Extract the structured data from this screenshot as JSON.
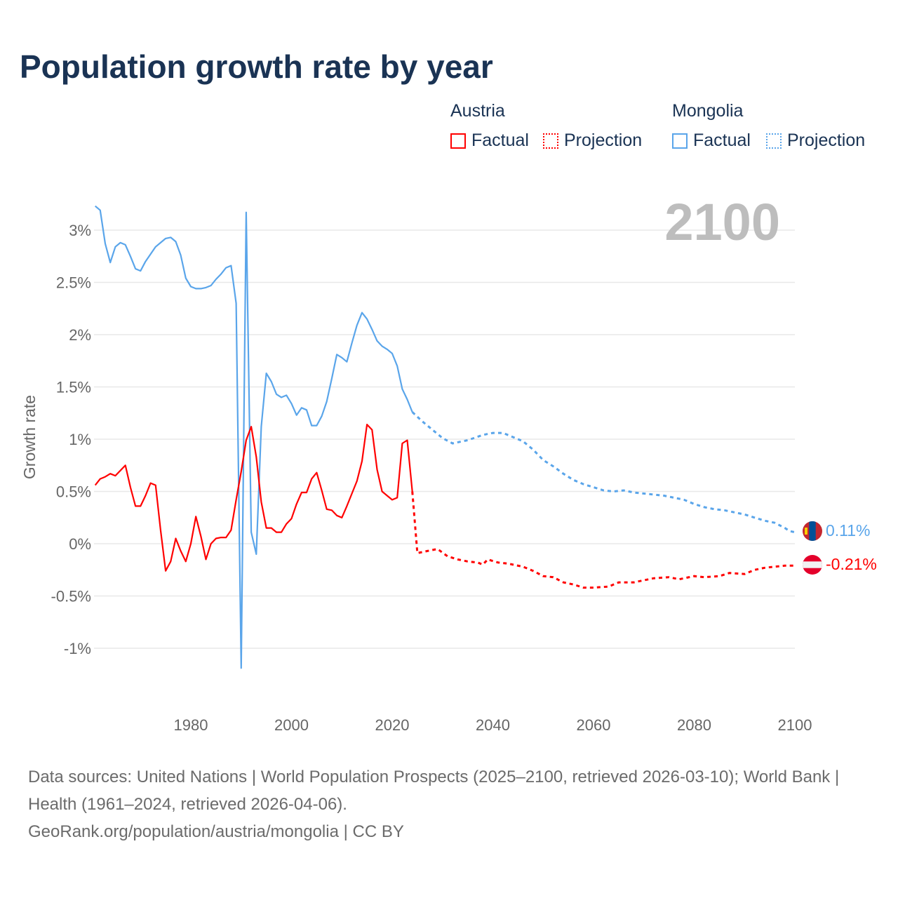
{
  "title": "Population growth rate by year",
  "legend": {
    "groups": [
      {
        "name": "Austria",
        "factual": "Factual",
        "projection": "Projection",
        "color": "#ff0000"
      },
      {
        "name": "Mongolia",
        "factual": "Factual",
        "projection": "Projection",
        "color": "#5aa5ea"
      }
    ]
  },
  "footer": {
    "sources": "Data sources: United Nations | World Population Prospects (2025–2100, retrieved 2026-03-10); World Bank | Health (1961–2024, retrieved 2026-04-06).",
    "credit": "GeoRank.org/population/austria/mongolia | CC BY"
  },
  "chart_data": {
    "type": "line",
    "title": "Population growth rate by year",
    "ylabel": "Growth rate",
    "xlabel": "",
    "year_label": "2100",
    "xlim": [
      1961,
      2100
    ],
    "ylim": [
      -1.5,
      3.3
    ],
    "x_ticks": [
      1980,
      2000,
      2020,
      2040,
      2060,
      2080,
      2100
    ],
    "y_ticks": [
      -1,
      -0.5,
      0,
      0.5,
      1,
      1.5,
      2,
      2.5,
      3
    ],
    "y_tick_labels": [
      "-1%",
      "-0.5%",
      "0%",
      "0.5%",
      "1%",
      "1.5%",
      "2%",
      "2.5%",
      "3%"
    ],
    "grid": true,
    "end_labels": {
      "Austria": "-0.21%",
      "Mongolia": "0.11%"
    },
    "series": [
      {
        "name": "Mongolia",
        "color": "#5aa5ea",
        "factual": [
          [
            1961,
            3.23
          ],
          [
            1962,
            3.19
          ],
          [
            1963,
            2.87
          ],
          [
            1964,
            2.69
          ],
          [
            1965,
            2.84
          ],
          [
            1966,
            2.88
          ],
          [
            1967,
            2.86
          ],
          [
            1968,
            2.75
          ],
          [
            1969,
            2.63
          ],
          [
            1970,
            2.61
          ],
          [
            1971,
            2.7
          ],
          [
            1972,
            2.77
          ],
          [
            1973,
            2.84
          ],
          [
            1974,
            2.88
          ],
          [
            1975,
            2.92
          ],
          [
            1976,
            2.93
          ],
          [
            1977,
            2.89
          ],
          [
            1978,
            2.76
          ],
          [
            1979,
            2.54
          ],
          [
            1980,
            2.46
          ],
          [
            1981,
            2.44
          ],
          [
            1982,
            2.44
          ],
          [
            1983,
            2.45
          ],
          [
            1984,
            2.47
          ],
          [
            1985,
            2.53
          ],
          [
            1986,
            2.58
          ],
          [
            1987,
            2.64
          ],
          [
            1988,
            2.66
          ],
          [
            1989,
            2.3
          ],
          [
            1990,
            -1.19
          ],
          [
            1991,
            3.17
          ],
          [
            1992,
            0.11
          ],
          [
            1993,
            -0.1
          ],
          [
            1994,
            1.12
          ],
          [
            1995,
            1.63
          ],
          [
            1996,
            1.55
          ],
          [
            1997,
            1.43
          ],
          [
            1998,
            1.4
          ],
          [
            1999,
            1.42
          ],
          [
            2000,
            1.34
          ],
          [
            2001,
            1.23
          ],
          [
            2002,
            1.3
          ],
          [
            2003,
            1.28
          ],
          [
            2004,
            1.13
          ],
          [
            2005,
            1.13
          ],
          [
            2006,
            1.22
          ],
          [
            2007,
            1.36
          ],
          [
            2008,
            1.58
          ],
          [
            2009,
            1.81
          ],
          [
            2010,
            1.78
          ],
          [
            2011,
            1.74
          ],
          [
            2012,
            1.92
          ],
          [
            2013,
            2.09
          ],
          [
            2014,
            2.21
          ],
          [
            2015,
            2.15
          ],
          [
            2016,
            2.05
          ],
          [
            2017,
            1.94
          ],
          [
            2018,
            1.89
          ],
          [
            2019,
            1.86
          ],
          [
            2020,
            1.82
          ],
          [
            2021,
            1.7
          ],
          [
            2022,
            1.48
          ],
          [
            2023,
            1.38
          ],
          [
            2024,
            1.26
          ]
        ],
        "projection": [
          [
            2024,
            1.26
          ],
          [
            2026,
            1.17
          ],
          [
            2028,
            1.09
          ],
          [
            2030,
            1.01
          ],
          [
            2032,
            0.96
          ],
          [
            2035,
            0.99
          ],
          [
            2038,
            1.04
          ],
          [
            2040,
            1.06
          ],
          [
            2042,
            1.06
          ],
          [
            2044,
            1.02
          ],
          [
            2046,
            0.98
          ],
          [
            2048,
            0.9
          ],
          [
            2050,
            0.8
          ],
          [
            2052,
            0.74
          ],
          [
            2054,
            0.67
          ],
          [
            2056,
            0.61
          ],
          [
            2058,
            0.57
          ],
          [
            2060,
            0.54
          ],
          [
            2062,
            0.51
          ],
          [
            2064,
            0.5
          ],
          [
            2066,
            0.51
          ],
          [
            2068,
            0.49
          ],
          [
            2070,
            0.48
          ],
          [
            2072,
            0.47
          ],
          [
            2074,
            0.46
          ],
          [
            2076,
            0.44
          ],
          [
            2078,
            0.42
          ],
          [
            2080,
            0.38
          ],
          [
            2082,
            0.35
          ],
          [
            2084,
            0.33
          ],
          [
            2086,
            0.32
          ],
          [
            2088,
            0.3
          ],
          [
            2090,
            0.28
          ],
          [
            2092,
            0.25
          ],
          [
            2094,
            0.22
          ],
          [
            2096,
            0.2
          ],
          [
            2098,
            0.15
          ],
          [
            2099,
            0.12
          ],
          [
            2100,
            0.11
          ]
        ]
      },
      {
        "name": "Austria",
        "color": "#ff0000",
        "factual": [
          [
            1961,
            0.56
          ],
          [
            1962,
            0.62
          ],
          [
            1963,
            0.64
          ],
          [
            1964,
            0.67
          ],
          [
            1965,
            0.65
          ],
          [
            1966,
            0.7
          ],
          [
            1967,
            0.75
          ],
          [
            1968,
            0.54
          ],
          [
            1969,
            0.36
          ],
          [
            1970,
            0.36
          ],
          [
            1971,
            0.46
          ],
          [
            1972,
            0.58
          ],
          [
            1973,
            0.56
          ],
          [
            1974,
            0.13
          ],
          [
            1975,
            -0.26
          ],
          [
            1976,
            -0.17
          ],
          [
            1977,
            0.05
          ],
          [
            1978,
            -0.07
          ],
          [
            1979,
            -0.17
          ],
          [
            1980,
            0.0
          ],
          [
            1981,
            0.26
          ],
          [
            1982,
            0.07
          ],
          [
            1983,
            -0.15
          ],
          [
            1984,
            0.0
          ],
          [
            1985,
            0.05
          ],
          [
            1986,
            0.06
          ],
          [
            1987,
            0.06
          ],
          [
            1988,
            0.13
          ],
          [
            1989,
            0.42
          ],
          [
            1990,
            0.69
          ],
          [
            1991,
            0.99
          ],
          [
            1992,
            1.12
          ],
          [
            1993,
            0.83
          ],
          [
            1994,
            0.4
          ],
          [
            1995,
            0.15
          ],
          [
            1996,
            0.15
          ],
          [
            1997,
            0.11
          ],
          [
            1998,
            0.11
          ],
          [
            1999,
            0.19
          ],
          [
            2000,
            0.24
          ],
          [
            2001,
            0.38
          ],
          [
            2002,
            0.49
          ],
          [
            2003,
            0.49
          ],
          [
            2004,
            0.62
          ],
          [
            2005,
            0.68
          ],
          [
            2006,
            0.51
          ],
          [
            2007,
            0.33
          ],
          [
            2008,
            0.32
          ],
          [
            2009,
            0.27
          ],
          [
            2010,
            0.25
          ],
          [
            2011,
            0.36
          ],
          [
            2012,
            0.48
          ],
          [
            2013,
            0.6
          ],
          [
            2014,
            0.79
          ],
          [
            2015,
            1.14
          ],
          [
            2016,
            1.09
          ],
          [
            2017,
            0.71
          ],
          [
            2018,
            0.5
          ],
          [
            2019,
            0.46
          ],
          [
            2020,
            0.42
          ],
          [
            2021,
            0.44
          ],
          [
            2022,
            0.96
          ],
          [
            2023,
            0.99
          ],
          [
            2024,
            0.5
          ]
        ],
        "projection": [
          [
            2024,
            0.5
          ],
          [
            2025,
            -0.09
          ],
          [
            2027,
            -0.07
          ],
          [
            2029,
            -0.05
          ],
          [
            2031,
            -0.12
          ],
          [
            2033,
            -0.15
          ],
          [
            2035,
            -0.17
          ],
          [
            2037,
            -0.18
          ],
          [
            2038,
            -0.2
          ],
          [
            2039,
            -0.15
          ],
          [
            2041,
            -0.18
          ],
          [
            2043,
            -0.19
          ],
          [
            2046,
            -0.22
          ],
          [
            2048,
            -0.26
          ],
          [
            2050,
            -0.31
          ],
          [
            2052,
            -0.32
          ],
          [
            2054,
            -0.37
          ],
          [
            2056,
            -0.39
          ],
          [
            2058,
            -0.42
          ],
          [
            2060,
            -0.42
          ],
          [
            2063,
            -0.41
          ],
          [
            2065,
            -0.37
          ],
          [
            2068,
            -0.37
          ],
          [
            2070,
            -0.35
          ],
          [
            2072,
            -0.33
          ],
          [
            2075,
            -0.32
          ],
          [
            2077,
            -0.34
          ],
          [
            2080,
            -0.31
          ],
          [
            2082,
            -0.32
          ],
          [
            2085,
            -0.31
          ],
          [
            2087,
            -0.28
          ],
          [
            2090,
            -0.29
          ],
          [
            2092,
            -0.25
          ],
          [
            2094,
            -0.23
          ],
          [
            2096,
            -0.22
          ],
          [
            2098,
            -0.21
          ],
          [
            2100,
            -0.21
          ]
        ]
      }
    ]
  }
}
